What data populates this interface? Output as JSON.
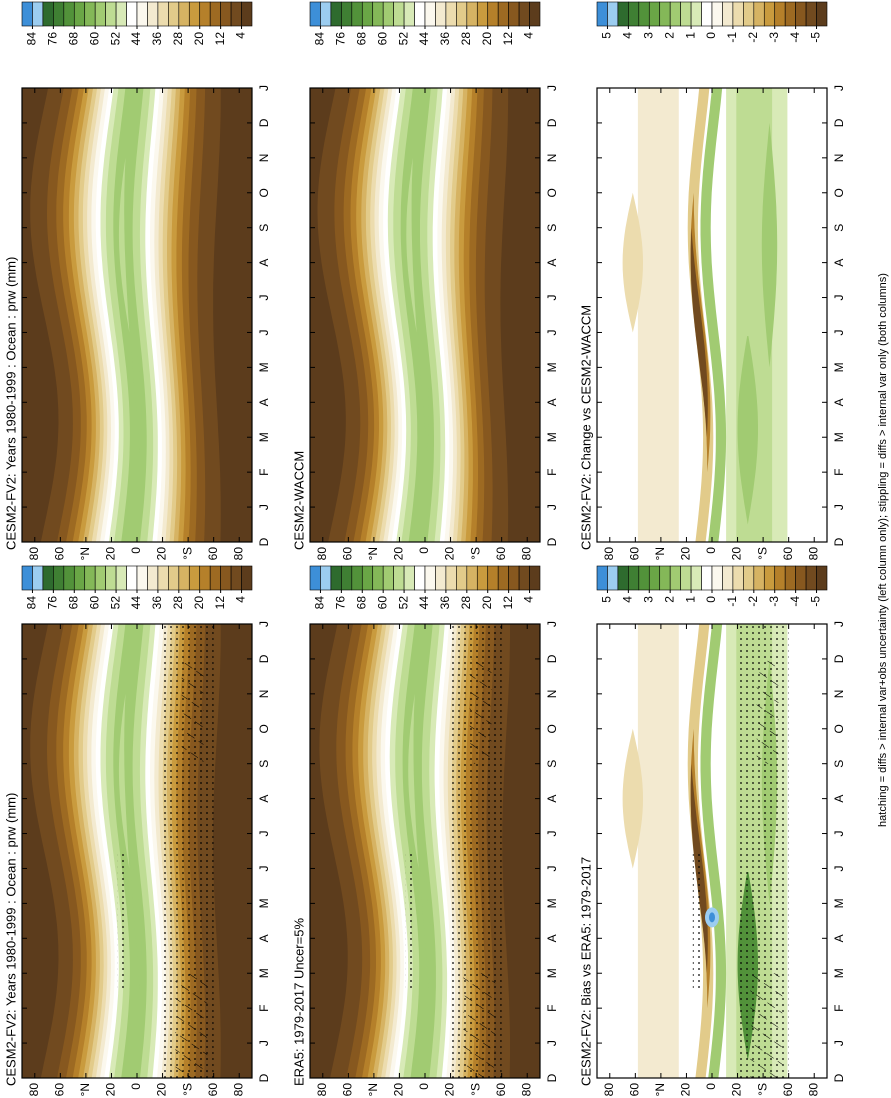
{
  "chart_data": [
    {
      "type": "contour",
      "title": "CESM2-FV2: Years 1980-1999 : Ocean : prw (mm)",
      "categories": [
        "D",
        "J",
        "F",
        "M",
        "A",
        "M",
        "J",
        "J",
        "A",
        "S",
        "O",
        "N",
        "D",
        "J"
      ],
      "ylim": [
        -90,
        90
      ],
      "yticks": [
        80,
        60,
        {
          "value": 40,
          "label": "°N"
        },
        20,
        0,
        {
          "value": -20,
          "label": "20"
        },
        {
          "value": -40,
          "label": "°S"
        },
        {
          "value": -60,
          "label": "60"
        },
        {
          "value": -80,
          "label": "80"
        }
      ],
      "levels": [
        84,
        76,
        68,
        60,
        52,
        44,
        36,
        28,
        20,
        12,
        4
      ]
    },
    {
      "type": "contour",
      "title": "ERA5: 1979-2017 Uncer=5%",
      "categories": [
        "D",
        "J",
        "F",
        "M",
        "A",
        "M",
        "J",
        "J",
        "A",
        "S",
        "O",
        "N",
        "D",
        "J"
      ],
      "ylim": [
        -90,
        90
      ],
      "yticks": [
        80,
        60,
        {
          "value": 40,
          "label": "°N"
        },
        20,
        0,
        {
          "value": -20,
          "label": "20"
        },
        {
          "value": -40,
          "label": "°S"
        },
        {
          "value": -60,
          "label": "60"
        },
        {
          "value": -80,
          "label": "80"
        }
      ],
      "levels": [
        84,
        76,
        68,
        60,
        52,
        44,
        36,
        28,
        20,
        12,
        4
      ]
    },
    {
      "type": "contour",
      "title": "CESM2-FV2: Bias vs ERA5: 1979-2017",
      "categories": [
        "D",
        "J",
        "F",
        "M",
        "A",
        "M",
        "J",
        "J",
        "A",
        "S",
        "O",
        "N",
        "D",
        "J"
      ],
      "ylim": [
        -90,
        90
      ],
      "yticks": [
        80,
        60,
        {
          "value": 40,
          "label": "°N"
        },
        20,
        0,
        {
          "value": -20,
          "label": "20"
        },
        {
          "value": -40,
          "label": "°S"
        },
        {
          "value": -60,
          "label": "60"
        },
        {
          "value": -80,
          "label": "80"
        }
      ],
      "levels": [
        5,
        4,
        3,
        2,
        1,
        0,
        -1,
        -2,
        -3,
        -4,
        -5
      ]
    },
    {
      "type": "contour",
      "title": "CESM2-FV2: Years 1980-1999 : Ocean : prw (mm)",
      "categories": [
        "D",
        "J",
        "F",
        "M",
        "A",
        "M",
        "J",
        "J",
        "A",
        "S",
        "O",
        "N",
        "D",
        "J"
      ],
      "ylim": [
        -90,
        90
      ],
      "yticks": [
        80,
        60,
        {
          "value": 40,
          "label": "°N"
        },
        20,
        0,
        {
          "value": -20,
          "label": "20"
        },
        {
          "value": -40,
          "label": "°S"
        },
        {
          "value": -60,
          "label": "60"
        },
        {
          "value": -80,
          "label": "80"
        }
      ],
      "levels": [
        84,
        76,
        68,
        60,
        52,
        44,
        36,
        28,
        20,
        12,
        4
      ]
    },
    {
      "type": "contour",
      "title": "CESM2-WACCM",
      "categories": [
        "D",
        "J",
        "F",
        "M",
        "A",
        "M",
        "J",
        "J",
        "A",
        "S",
        "O",
        "N",
        "D",
        "J"
      ],
      "ylim": [
        -90,
        90
      ],
      "yticks": [
        80,
        60,
        {
          "value": 40,
          "label": "°N"
        },
        20,
        0,
        {
          "value": -20,
          "label": "20"
        },
        {
          "value": -40,
          "label": "°S"
        },
        {
          "value": -60,
          "label": "60"
        },
        {
          "value": -80,
          "label": "80"
        }
      ],
      "levels": [
        84,
        76,
        68,
        60,
        52,
        44,
        36,
        28,
        20,
        12,
        4
      ]
    },
    {
      "type": "contour",
      "title": "CESM2-FV2: Change vs CESM2-WACCM",
      "categories": [
        "D",
        "J",
        "F",
        "M",
        "A",
        "M",
        "J",
        "J",
        "A",
        "S",
        "O",
        "N",
        "D",
        "J"
      ],
      "ylim": [
        -90,
        90
      ],
      "yticks": [
        80,
        60,
        {
          "value": 40,
          "label": "°N"
        },
        20,
        0,
        {
          "value": -20,
          "label": "20"
        },
        {
          "value": -40,
          "label": "°S"
        },
        {
          "value": -60,
          "label": "60"
        },
        {
          "value": -80,
          "label": "80"
        }
      ],
      "levels": [
        5,
        4,
        3,
        2,
        1,
        0,
        -1,
        -2,
        -3,
        -4,
        -5
      ]
    }
  ],
  "caption": "hatching = diffs > internal var+obs uncertainty (left column only); stippling = diffs > internal var only (both columns)"
}
